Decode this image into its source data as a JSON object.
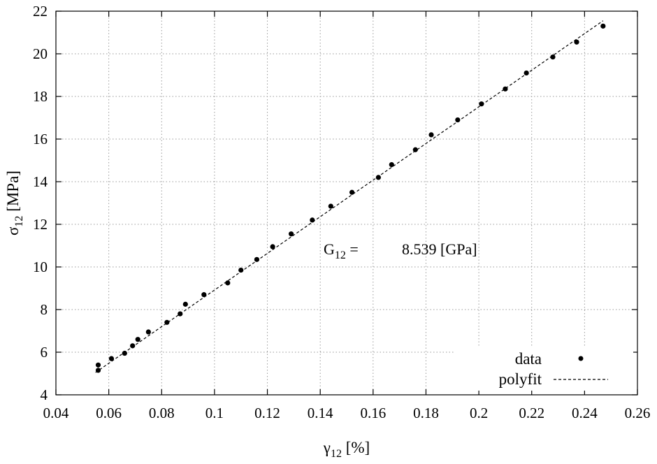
{
  "chart_data": {
    "type": "scatter",
    "x_label": {
      "symbol": "γ",
      "sub": "12",
      "unit": " [%]"
    },
    "y_label": {
      "symbol": "σ",
      "sub": "12",
      "unit": " [MPa]"
    },
    "xlim": [
      0.04,
      0.26
    ],
    "ylim": [
      4,
      22
    ],
    "x_ticks": [
      0.04,
      0.06,
      0.08,
      0.1,
      0.12,
      0.14,
      0.16,
      0.18,
      0.2,
      0.22,
      0.24,
      0.26
    ],
    "x_tick_labels": [
      "0.04",
      "0.06",
      "0.08",
      "0.1",
      "0.12",
      "0.14",
      "0.16",
      "0.18",
      "0.2",
      "0.22",
      "0.24",
      "0.26"
    ],
    "y_ticks": [
      4,
      6,
      8,
      10,
      12,
      14,
      16,
      18,
      20,
      22
    ],
    "y_tick_labels": [
      "4",
      "6",
      "8",
      "10",
      "12",
      "14",
      "16",
      "18",
      "20",
      "22"
    ],
    "grid": true,
    "legend_position": "bottom-right",
    "annotation": {
      "label": "G",
      "sub": "12",
      "eq": " =",
      "value": "8.539 [GPa]"
    },
    "series": [
      {
        "name": "data",
        "kind": "points",
        "x": [
          0.056,
          0.056,
          0.061,
          0.066,
          0.069,
          0.071,
          0.075,
          0.082,
          0.087,
          0.089,
          0.096,
          0.105,
          0.11,
          0.116,
          0.122,
          0.129,
          0.137,
          0.144,
          0.152,
          0.162,
          0.167,
          0.176,
          0.182,
          0.192,
          0.201,
          0.21,
          0.218,
          0.228,
          0.237,
          0.247
        ],
        "y": [
          5.15,
          5.4,
          5.7,
          5.95,
          6.3,
          6.6,
          6.95,
          7.4,
          7.8,
          8.25,
          8.7,
          9.25,
          9.85,
          10.35,
          10.95,
          11.55,
          12.2,
          12.85,
          13.5,
          14.2,
          14.8,
          15.5,
          16.2,
          16.9,
          17.65,
          18.35,
          19.1,
          19.85,
          20.55,
          21.3
        ]
      },
      {
        "name": "polyfit",
        "kind": "line",
        "x": [
          0.055,
          0.247
        ],
        "y": [
          5.05,
          21.55
        ]
      }
    ]
  }
}
